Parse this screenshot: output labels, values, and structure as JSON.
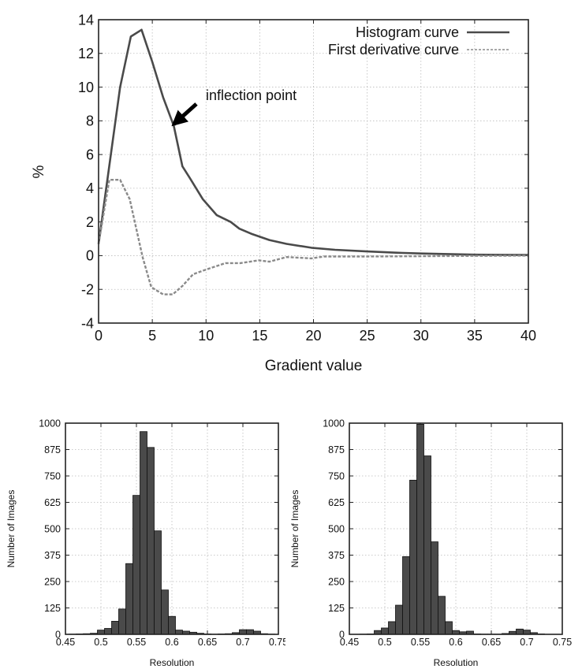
{
  "chart_data": [
    {
      "type": "line",
      "title": "",
      "xlabel": "Gradient value",
      "ylabel": "%",
      "xlim": [
        0,
        40
      ],
      "ylim": [
        -4,
        14
      ],
      "xticks": [
        "0",
        "5",
        "10",
        "15",
        "20",
        "25",
        "30",
        "35",
        "40"
      ],
      "yticks": [
        "-4",
        "-2",
        "0",
        "2",
        "4",
        "6",
        "8",
        "10",
        "12",
        "14"
      ],
      "grid": true,
      "legend_position": "top-right",
      "series": [
        {
          "name": "Histogram curve",
          "style": "solid",
          "color": "#4a4a4a",
          "x": [
            0,
            2,
            3,
            4,
            5,
            6,
            7,
            7.8,
            8.5,
            9.7,
            11,
            12.3,
            13.1,
            14.2,
            15.9,
            17.5,
            19.8,
            22,
            25,
            27.5,
            30,
            35,
            40
          ],
          "y": [
            0.7,
            10.0,
            13.0,
            13.4,
            11.5,
            9.4,
            7.7,
            5.3,
            4.6,
            3.35,
            2.4,
            2.0,
            1.6,
            1.3,
            0.93,
            0.7,
            0.47,
            0.35,
            0.25,
            0.18,
            0.13,
            0.06,
            0.04
          ]
        },
        {
          "name": "First derivative curve",
          "style": "dashed",
          "color": "#8a8a8a",
          "x": [
            0,
            1,
            2,
            2.9,
            4.1,
            4.9,
            6,
            6.9,
            7.8,
            8.8,
            9.9,
            11.8,
            13.2,
            14.9,
            15.9,
            17.5,
            19.8,
            21,
            25,
            30,
            35,
            40
          ],
          "y": [
            0.7,
            4.5,
            4.5,
            3.35,
            -0.1,
            -1.87,
            -2.3,
            -2.3,
            -1.8,
            -1.1,
            -0.85,
            -0.44,
            -0.44,
            -0.28,
            -0.36,
            -0.08,
            -0.16,
            -0.05,
            -0.05,
            -0.03,
            -0.01,
            0
          ]
        }
      ],
      "annotations": [
        {
          "text": "inflection point",
          "arrow_to": [
            7,
            7.8
          ],
          "arrow_from": [
            9.1,
            9.0
          ]
        }
      ]
    },
    {
      "type": "bar",
      "title": "",
      "xlabel": "Resolution",
      "ylabel": "Number of Images",
      "xlim": [
        0.45,
        0.75
      ],
      "ylim": [
        0,
        1000
      ],
      "xticks": [
        "0.45",
        "0.5",
        "0.55",
        "0.6",
        "0.65",
        "0.7",
        "0.75"
      ],
      "yticks": [
        "0",
        "125",
        "250",
        "375",
        "500",
        "625",
        "750",
        "875",
        "1000"
      ],
      "bin_width": 0.01,
      "color": "#4a4a4a",
      "grid": true,
      "x": [
        0.46,
        0.47,
        0.48,
        0.49,
        0.5,
        0.51,
        0.52,
        0.53,
        0.54,
        0.55,
        0.56,
        0.57,
        0.58,
        0.59,
        0.6,
        0.61,
        0.62,
        0.63,
        0.64,
        0.65,
        0.66,
        0.67,
        0.68,
        0.69,
        0.7,
        0.71,
        0.72,
        0.73,
        0.74
      ],
      "values": [
        1,
        2,
        3,
        5,
        20,
        28,
        62,
        120,
        335,
        658,
        960,
        885,
        490,
        210,
        85,
        20,
        15,
        10,
        5,
        2,
        1,
        2,
        3,
        8,
        22,
        22,
        15,
        3,
        1
      ]
    },
    {
      "type": "bar",
      "title": "",
      "xlabel": "Resolution",
      "ylabel": "Number of Images",
      "xlim": [
        0.45,
        0.75
      ],
      "ylim": [
        0,
        1000
      ],
      "xticks": [
        "0.45",
        "0.5",
        "0.55",
        "0.6",
        "0.65",
        "0.7",
        "0.75"
      ],
      "yticks": [
        "0",
        "125",
        "250",
        "375",
        "500",
        "625",
        "750",
        "875",
        "1000"
      ],
      "bin_width": 0.01,
      "color": "#4a4a4a",
      "grid": true,
      "x": [
        0.47,
        0.48,
        0.49,
        0.5,
        0.51,
        0.52,
        0.53,
        0.54,
        0.55,
        0.56,
        0.57,
        0.58,
        0.59,
        0.6,
        0.61,
        0.62,
        0.63,
        0.64,
        0.65,
        0.66,
        0.67,
        0.68,
        0.69,
        0.7,
        0.71,
        0.72
      ],
      "values": [
        1,
        2,
        18,
        30,
        60,
        138,
        368,
        730,
        995,
        845,
        438,
        180,
        60,
        18,
        12,
        15,
        2,
        1,
        1,
        1,
        4,
        14,
        25,
        20,
        8,
        2
      ]
    }
  ]
}
